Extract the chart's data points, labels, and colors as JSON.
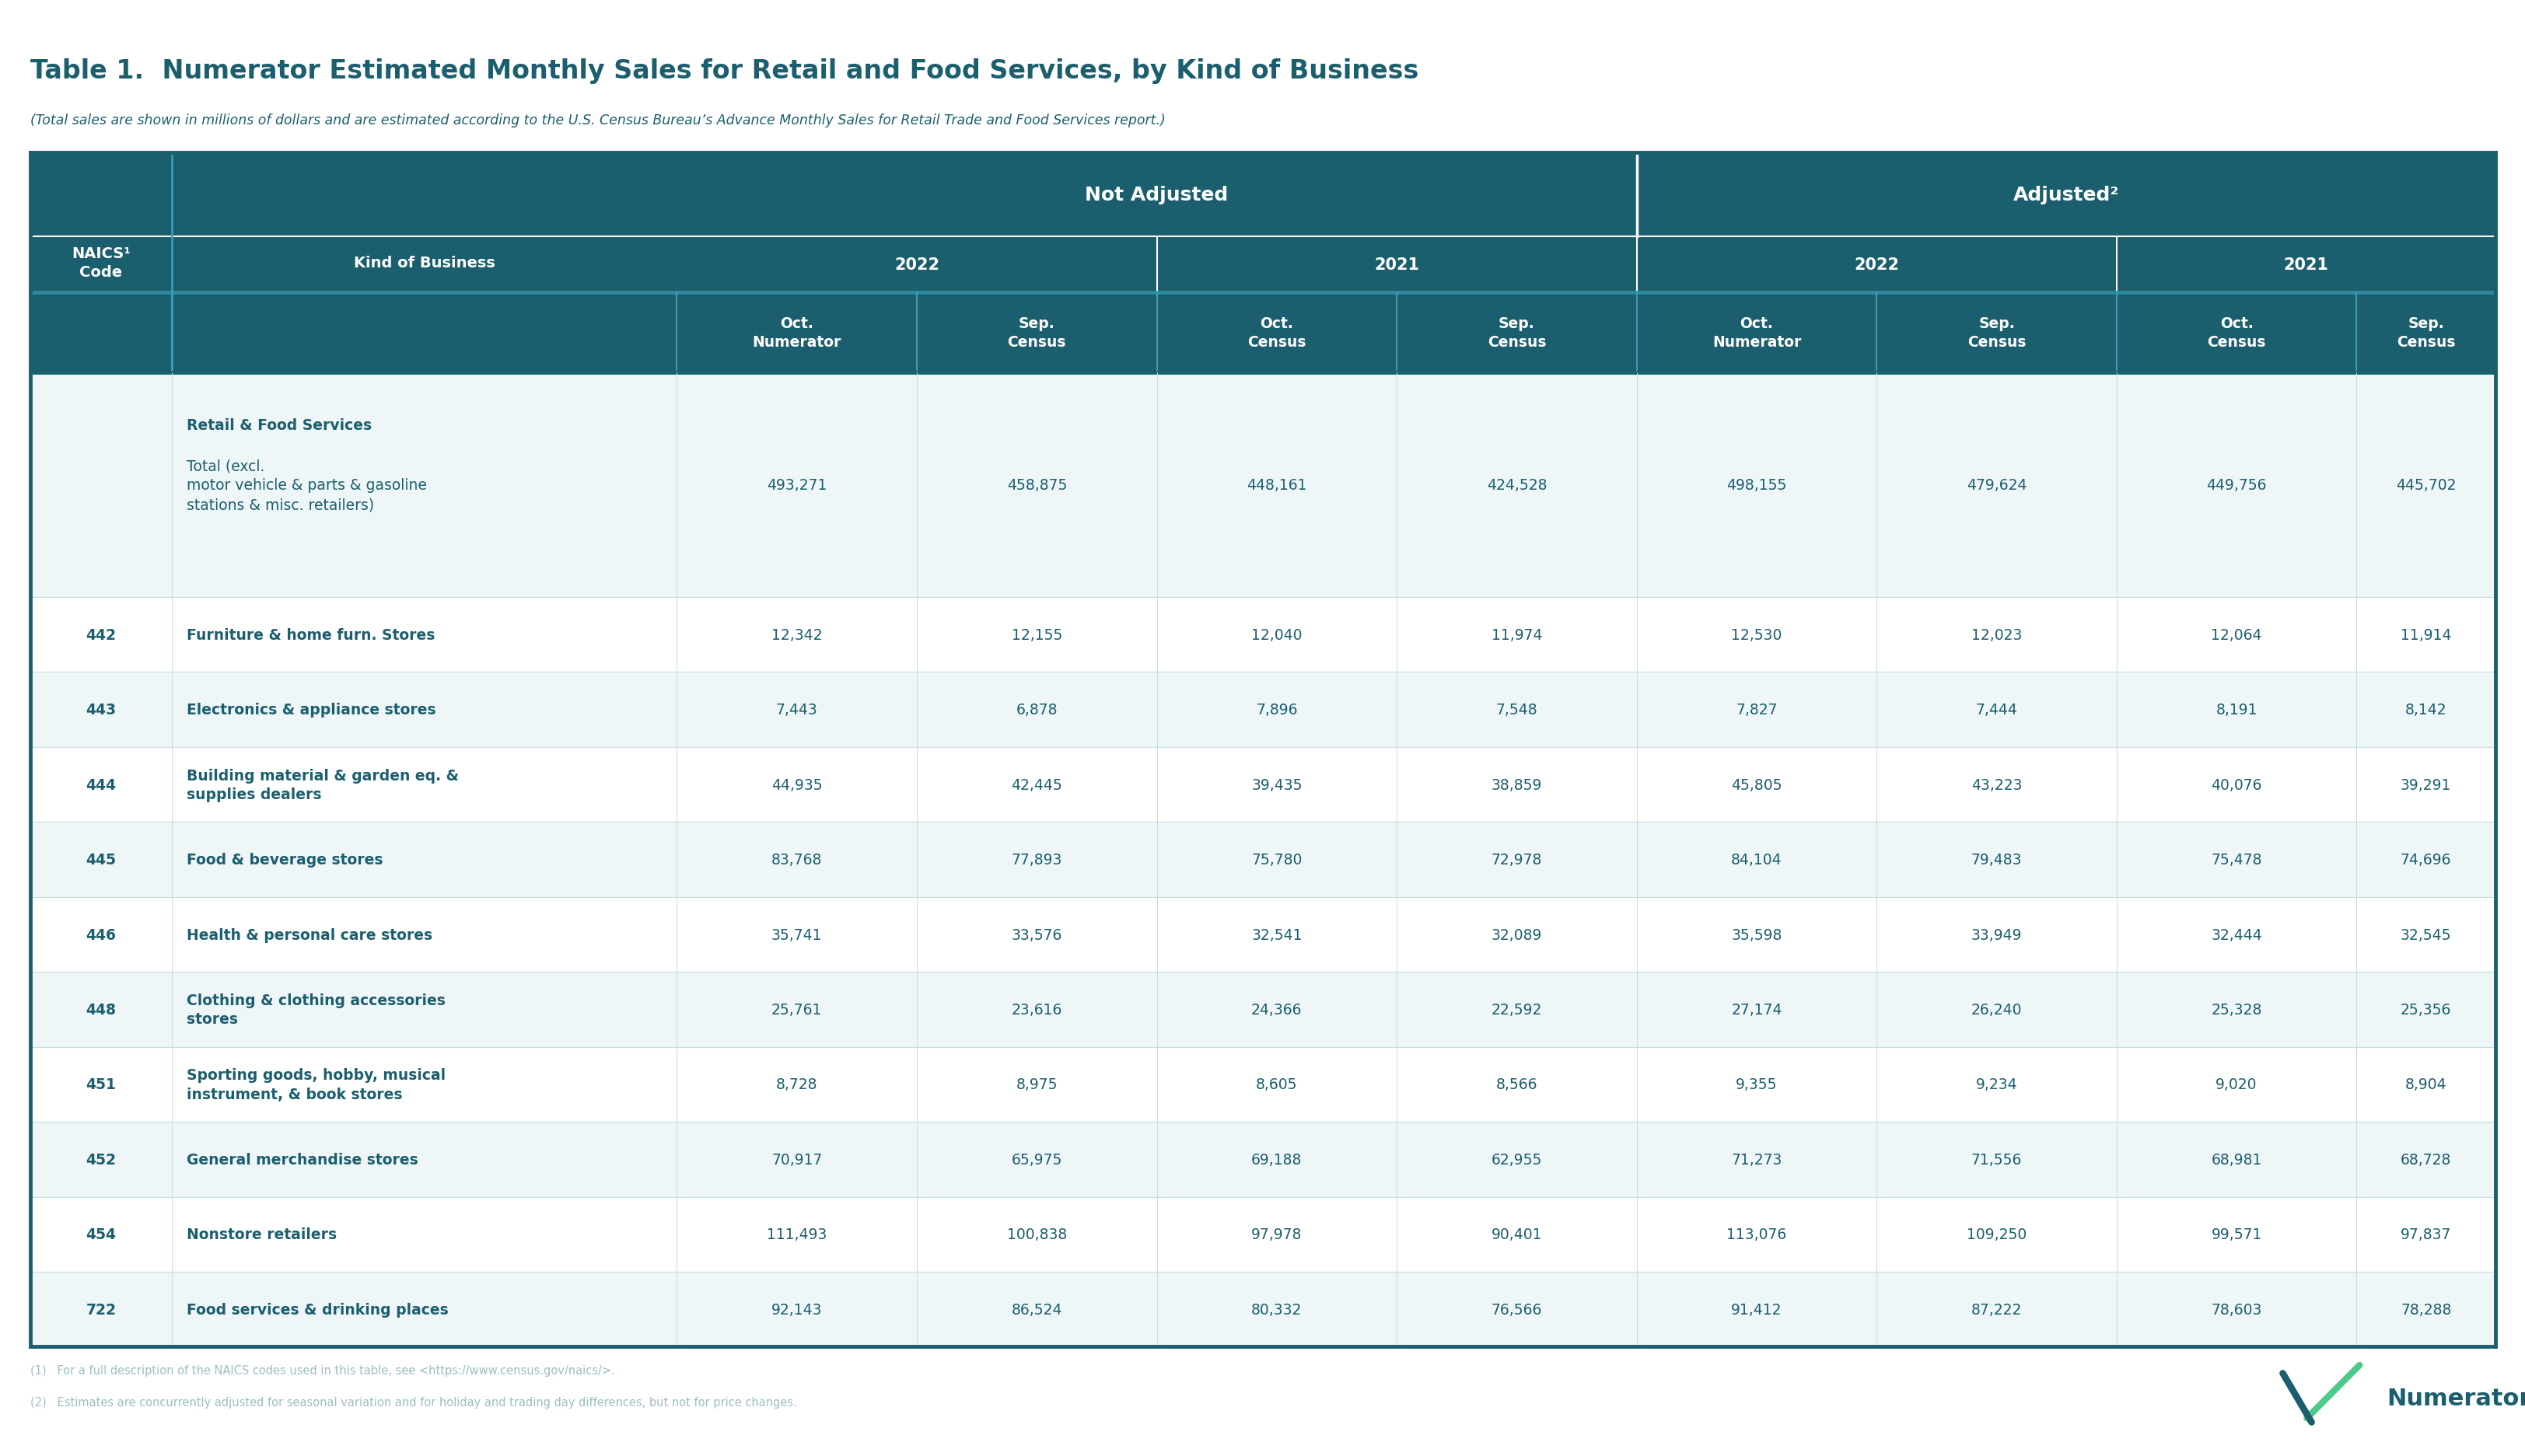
{
  "title": "Table 1.  Numerator Estimated Monthly Sales for Retail and Food Services, by Kind of Business",
  "subtitle": "(Total sales are shown in millions of dollars and are estimated according to the U.S. Census Bureau’s Advance Monthly Sales for Retail Trade and Food Services report.)",
  "header_color": "#1b5e6e",
  "header_text_color": "#ffffff",
  "body_bg_color": "#ffffff",
  "alt_row_color": "#eef6f7",
  "border_color": "#1b5e6e",
  "text_color": "#1b5e6e",
  "light_text_color": "#9bbec4",
  "title_color": "#1b5e6e",
  "rows": [
    {
      "naics": "",
      "business_bold": "Retail & Food Services",
      "business_normal": "  Total (excl.\nmotor vehicle & parts & gasoline\nstations & misc. retailers)",
      "values": [
        "493,271",
        "458,875",
        "448,161",
        "424,528",
        "498,155",
        "479,624",
        "449,756",
        "445,702"
      ],
      "tall": true
    },
    {
      "naics": "442",
      "business_bold": "Furniture & home furn. Stores",
      "business_normal": "",
      "values": [
        "12,342",
        "12,155",
        "12,040",
        "11,974",
        "12,530",
        "12,023",
        "12,064",
        "11,914"
      ],
      "tall": false
    },
    {
      "naics": "443",
      "business_bold": "Electronics & appliance stores",
      "business_normal": "",
      "values": [
        "7,443",
        "6,878",
        "7,896",
        "7,548",
        "7,827",
        "7,444",
        "8,191",
        "8,142"
      ],
      "tall": false
    },
    {
      "naics": "444",
      "business_bold": "Building material & garden eq. &\nsupplies dealers",
      "business_normal": "",
      "values": [
        "44,935",
        "42,445",
        "39,435",
        "38,859",
        "45,805",
        "43,223",
        "40,076",
        "39,291"
      ],
      "tall": false
    },
    {
      "naics": "445",
      "business_bold": "Food & beverage stores",
      "business_normal": "",
      "values": [
        "83,768",
        "77,893",
        "75,780",
        "72,978",
        "84,104",
        "79,483",
        "75,478",
        "74,696"
      ],
      "tall": false
    },
    {
      "naics": "446",
      "business_bold": "Health & personal care stores",
      "business_normal": "",
      "values": [
        "35,741",
        "33,576",
        "32,541",
        "32,089",
        "35,598",
        "33,949",
        "32,444",
        "32,545"
      ],
      "tall": false
    },
    {
      "naics": "448",
      "business_bold": "Clothing & clothing accessories\nstores",
      "business_normal": "",
      "values": [
        "25,761",
        "23,616",
        "24,366",
        "22,592",
        "27,174",
        "26,240",
        "25,328",
        "25,356"
      ],
      "tall": false
    },
    {
      "naics": "451",
      "business_bold": "Sporting goods, hobby, musical\ninstrument, & book stores",
      "business_normal": "",
      "values": [
        "8,728",
        "8,975",
        "8,605",
        "8,566",
        "9,355",
        "9,234",
        "9,020",
        "8,904"
      ],
      "tall": false
    },
    {
      "naics": "452",
      "business_bold": "General merchandise stores",
      "business_normal": "",
      "values": [
        "70,917",
        "65,975",
        "69,188",
        "62,955",
        "71,273",
        "71,556",
        "68,981",
        "68,728"
      ],
      "tall": false
    },
    {
      "naics": "454",
      "business_bold": "Nonstore retailers",
      "business_normal": "",
      "values": [
        "111,493",
        "100,838",
        "97,978",
        "90,401",
        "113,076",
        "109,250",
        "99,571",
        "97,837"
      ],
      "tall": false
    },
    {
      "naics": "722",
      "business_bold": "Food services & drinking places",
      "business_normal": "",
      "values": [
        "92,143",
        "86,524",
        "80,332",
        "76,566",
        "91,412",
        "87,222",
        "78,603",
        "78,288"
      ],
      "tall": false
    }
  ],
  "footnotes": [
    "(1)   For a full description of the NAICS codes used in this table, see <https://www.census.gov/naics/>.",
    "(2)   Estimates are concurrently adjusted for seasonal variation and for holiday and trading day differences, but not for price changes."
  ]
}
